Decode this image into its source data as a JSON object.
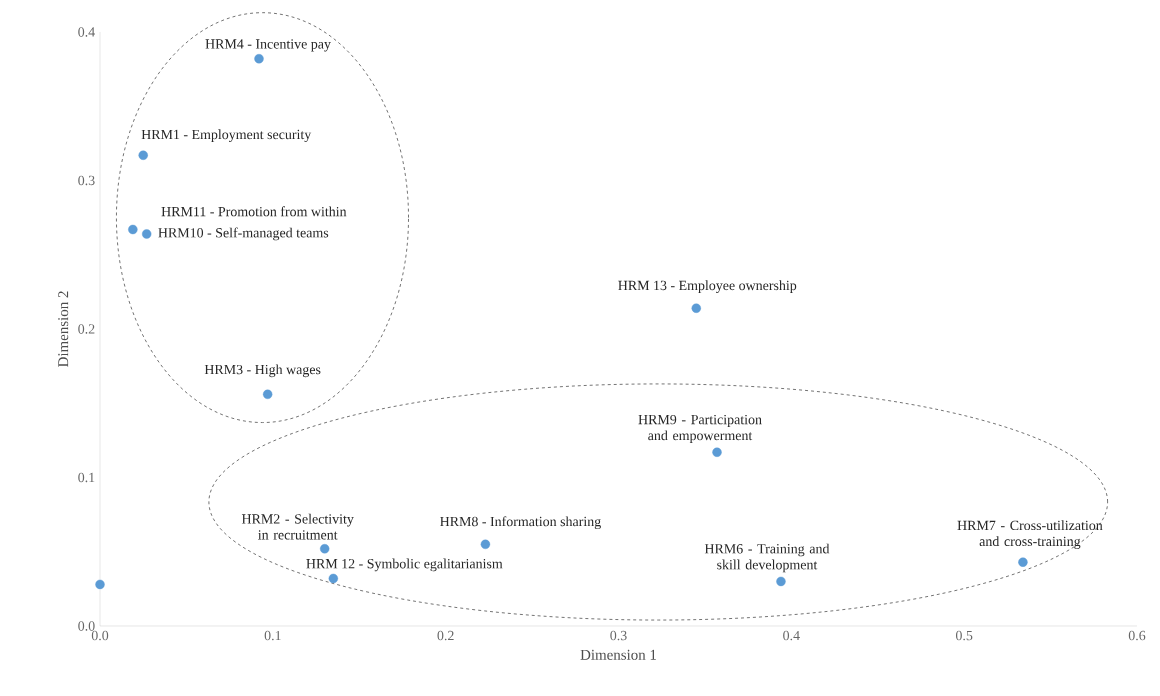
{
  "chart_data": {
    "type": "scatter",
    "xlabel": "Dimension 1",
    "ylabel": "Dimension 2",
    "x": [
      0.092,
      0.025,
      0.019,
      0.027,
      0.097,
      0.345,
      0.357,
      0.13,
      0.135,
      0.223,
      0.394,
      0.534,
      0.0
    ],
    "values": [
      0.382,
      0.317,
      0.267,
      0.264,
      0.156,
      0.214,
      0.117,
      0.052,
      0.032,
      0.055,
      0.03,
      0.043,
      0.028
    ],
    "color": "#5b9bd5",
    "marker": "circle",
    "xlim": [
      0,
      0.6
    ],
    "ylim": [
      0,
      0.4
    ],
    "xticks": [
      {
        "value": 0,
        "label": "0.0"
      },
      {
        "value": 0.1,
        "label": "0.1"
      },
      {
        "value": 0.2,
        "label": "0.2"
      },
      {
        "value": 0.3,
        "label": "0.3"
      },
      {
        "value": 0.4,
        "label": "0.4"
      },
      {
        "value": 0.5,
        "label": "0.5"
      },
      {
        "value": 0.6,
        "label": "0.6"
      }
    ],
    "yticks": [
      {
        "value": 0,
        "label": "0.0"
      },
      {
        "value": 0.1,
        "label": "0.1"
      },
      {
        "value": 0.2,
        "label": "0.2"
      },
      {
        "value": 0.3,
        "label": "0.3"
      },
      {
        "value": 0.4,
        "label": "0.4"
      }
    ],
    "annotations": [
      {
        "text": "HRM4 - Incentive pay",
        "x": 0.092,
        "y": 0.382
      },
      {
        "text": "HRM1 - Employment security",
        "x": 0.025,
        "y": 0.317
      },
      {
        "text": "HRM11 - Promotion from within",
        "x": 0.019,
        "y": 0.267
      },
      {
        "text": "HRM10 - Self-managed teams",
        "x": 0.027,
        "y": 0.264
      },
      {
        "text": "HRM3 - High wages",
        "x": 0.097,
        "y": 0.156
      },
      {
        "text": "HRM 13 - Employee ownership",
        "x": 0.345,
        "y": 0.214
      },
      {
        "text": "HRM9 - Participation and empowerment",
        "x": 0.357,
        "y": 0.117
      },
      {
        "text": "HRM2 - Selectivity in recruitment",
        "x": 0.13,
        "y": 0.052
      },
      {
        "text": "HRM 12 - Symbolic egalitarianism",
        "x": 0.135,
        "y": 0.032
      },
      {
        "text": "HRM8 - Information sharing",
        "x": 0.223,
        "y": 0.055
      },
      {
        "text": "HRM6 - Training and skill development",
        "x": 0.394,
        "y": 0.03
      },
      {
        "text": "HRM7 - Cross-utilization and cross-training",
        "x": 0.534,
        "y": 0.043
      }
    ]
  }
}
